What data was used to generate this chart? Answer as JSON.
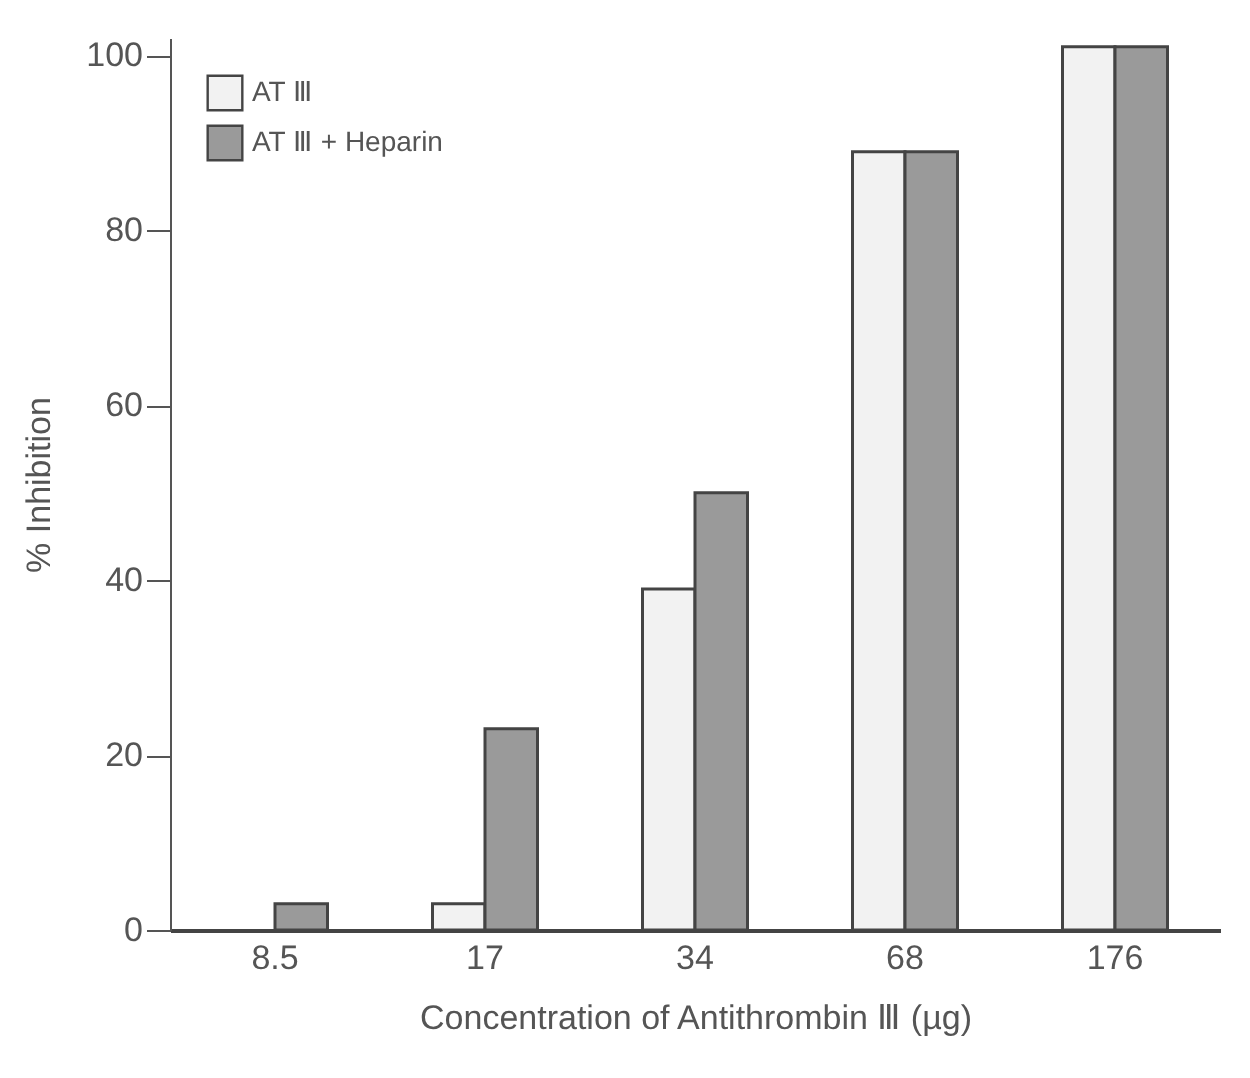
{
  "chart_data": {
    "type": "bar",
    "xlabel": "Concentration of Antithrombin Ⅲ (µg)",
    "ylabel": "% Inhibition",
    "categories": [
      "8.5",
      "17",
      "34",
      "68",
      "176"
    ],
    "series": [
      {
        "name": "AT Ⅲ",
        "color": "#f2f2f2",
        "values": [
          0,
          3,
          39,
          89,
          101
        ]
      },
      {
        "name": "AT Ⅲ + Heparin",
        "color": "#9a9a9a",
        "values": [
          3,
          23,
          50,
          89,
          101
        ]
      }
    ],
    "ylim": [
      0,
      102
    ],
    "yticks": [
      0,
      20,
      40,
      60,
      80,
      100
    ],
    "grid": false,
    "legend": "top left"
  }
}
